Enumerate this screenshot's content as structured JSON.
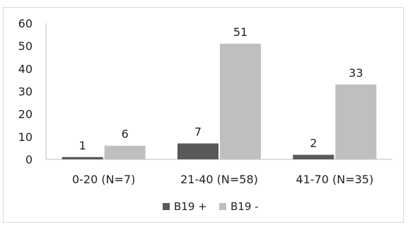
{
  "chart_data": {
    "type": "bar",
    "categories": [
      "0-20 (N=7)",
      "21-40 (N=58)",
      "41-70 (N=35)"
    ],
    "series": [
      {
        "name": "B19 +",
        "values": [
          1,
          7,
          2
        ],
        "color": "#595959"
      },
      {
        "name": "B19 -",
        "values": [
          6,
          51,
          33
        ],
        "color": "#bfbfbf"
      }
    ],
    "yticks": [
      "0",
      "10",
      "20",
      "30",
      "40",
      "50",
      "60"
    ],
    "ylim": [
      0,
      60
    ],
    "grid": false,
    "legend_position": "bottom"
  }
}
